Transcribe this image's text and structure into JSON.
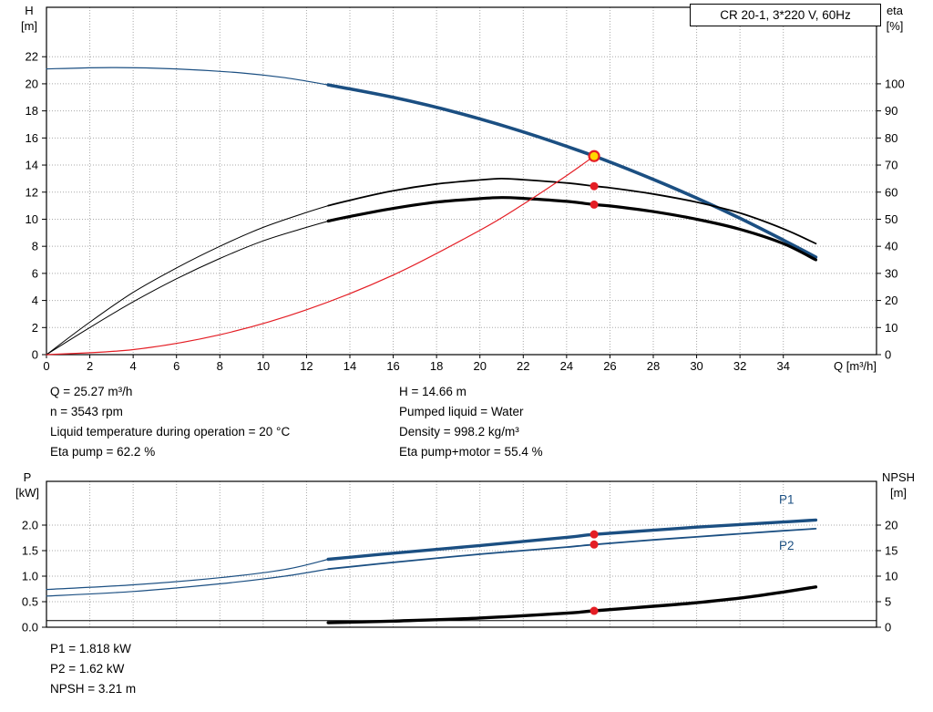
{
  "title_box": "CR 20-1, 3*220 V, 60Hz",
  "colors": {
    "curve_blue": "#1b4f82",
    "curve_black": "#000000",
    "curve_red": "#e41e25",
    "duty_yellow": "#ffd800",
    "grid": "#a8a8a8"
  },
  "info_columns": {
    "left": [
      "Q = 25.27 m³/h",
      "n = 3543 rpm",
      "Liquid temperature during operation = 20 °C",
      "Eta pump = 62.2 %"
    ],
    "right": [
      "H = 14.66 m",
      "Pumped liquid = Water",
      "Density = 998.2 kg/m³",
      "Eta pump+motor = 55.4 %"
    ]
  },
  "results": [
    "P1 = 1.818 kW",
    "P2 = 1.62 kW",
    "NPSH = 3.21 m"
  ],
  "chart_data": [
    {
      "type": "line",
      "name": "hq-eta-chart",
      "title": "CR 20-1, 3*220 V, 60Hz",
      "grid_color": "#a8a8a8",
      "x_axis": {
        "label": "Q [m³/h]",
        "min": 0,
        "max": 38.3,
        "ticks": [
          0,
          2,
          4,
          6,
          8,
          10,
          12,
          14,
          16,
          18,
          20,
          22,
          24,
          26,
          28,
          30,
          32,
          34
        ],
        "labels": [
          "0",
          "2",
          "4",
          "6",
          "8",
          "10",
          "12",
          "14",
          "16",
          "18",
          "20",
          "22",
          "24",
          "26",
          "28",
          "30",
          "32",
          "34"
        ]
      },
      "y_left": {
        "title_lines": [
          "H",
          "[m]"
        ],
        "min": 0,
        "max": 25.65,
        "ticks": [
          0,
          2,
          4,
          6,
          8,
          10,
          12,
          14,
          16,
          18,
          20,
          22
        ],
        "labels": [
          "0",
          "2",
          "4",
          "6",
          "8",
          "10",
          "12",
          "14",
          "16",
          "18",
          "20",
          "22"
        ]
      },
      "y_right": {
        "title_lines": [
          "eta",
          "[%]"
        ],
        "min": 0,
        "max": 128.25,
        "ticks": [
          0,
          10,
          20,
          30,
          40,
          50,
          60,
          70,
          80,
          90,
          100
        ],
        "labels": [
          "0",
          "10",
          "20",
          "30",
          "40",
          "50",
          "60",
          "70",
          "80",
          "90",
          "100"
        ]
      },
      "series": [
        {
          "name": "hq-curve-low",
          "axis": "left",
          "color": "#1b4f82",
          "width": 1.2,
          "points": [
            [
              0,
              21.1
            ],
            [
              3,
              21.2
            ],
            [
              6,
              21.1
            ],
            [
              9,
              20.8
            ],
            [
              11,
              20.45
            ],
            [
              13,
              19.92
            ]
          ]
        },
        {
          "name": "hq-curve",
          "axis": "left",
          "color": "#1b4f82",
          "width": 3.6,
          "points": [
            [
              13,
              19.92
            ],
            [
              16,
              19.0
            ],
            [
              19,
              17.85
            ],
            [
              22,
              16.45
            ],
            [
              25.27,
              14.66
            ],
            [
              28,
              12.94
            ],
            [
              30,
              11.56
            ],
            [
              32,
              10.07
            ],
            [
              34,
              8.46
            ],
            [
              35.5,
              7.2
            ]
          ]
        },
        {
          "name": "eta-pump-curve-low",
          "axis": "right",
          "color": "#000000",
          "width": 1,
          "points": [
            [
              0,
              0
            ],
            [
              2,
              12
            ],
            [
              4,
              23
            ],
            [
              6,
              32
            ],
            [
              8,
              40
            ],
            [
              10,
              47
            ],
            [
              12,
              52.5
            ],
            [
              13,
              55
            ]
          ]
        },
        {
          "name": "eta-pump-curve",
          "axis": "right",
          "color": "#000000",
          "width": 1.8,
          "points": [
            [
              13,
              55
            ],
            [
              14,
              57
            ],
            [
              16,
              60.5
            ],
            [
              18,
              63
            ],
            [
              20,
              64.5
            ],
            [
              21,
              65
            ],
            [
              22,
              64.6
            ],
            [
              24,
              63.4
            ],
            [
              25.27,
              62.2
            ],
            [
              26,
              61.6
            ],
            [
              28,
              59.3
            ],
            [
              30,
              56.3
            ],
            [
              32,
              52.3
            ],
            [
              34,
              46.5
            ],
            [
              35.5,
              41
            ]
          ]
        },
        {
          "name": "eta-pump-motor-curve-low",
          "axis": "right",
          "color": "#000000",
          "width": 1,
          "points": [
            [
              0,
              0
            ],
            [
              2,
              10
            ],
            [
              4,
              19.5
            ],
            [
              6,
              28
            ],
            [
              8,
              35.5
            ],
            [
              10,
              42
            ],
            [
              12,
              47
            ],
            [
              13,
              49.3
            ]
          ]
        },
        {
          "name": "eta-pump-motor-curve",
          "axis": "right",
          "color": "#000000",
          "width": 3.2,
          "points": [
            [
              13,
              49.3
            ],
            [
              14,
              51
            ],
            [
              16,
              54
            ],
            [
              18,
              56.3
            ],
            [
              20,
              57.6
            ],
            [
              21,
              58
            ],
            [
              22,
              57.7
            ],
            [
              24,
              56.6
            ],
            [
              25.27,
              55.4
            ],
            [
              26,
              54.9
            ],
            [
              28,
              52.8
            ],
            [
              30,
              50
            ],
            [
              32,
              46.3
            ],
            [
              34,
              41
            ],
            [
              35.5,
              35
            ]
          ]
        },
        {
          "name": "system-curve",
          "axis": "left",
          "color": "#e41e25",
          "width": 1.2,
          "points": [
            [
              0,
              0
            ],
            [
              4,
              0.37
            ],
            [
              8,
              1.47
            ],
            [
              12,
              3.31
            ],
            [
              16,
              5.88
            ],
            [
              20,
              9.18
            ],
            [
              22,
              11.11
            ],
            [
              24,
              13.22
            ],
            [
              25.27,
              14.66
            ]
          ]
        }
      ],
      "markers": [
        {
          "x": 25.27,
          "y": 14.66,
          "axis": "left",
          "style": "duty",
          "fill": "#ffd800",
          "stroke": "#e41e25"
        },
        {
          "x": 25.27,
          "y": 62.2,
          "axis": "right",
          "style": "dot",
          "fill": "#e41e25"
        },
        {
          "x": 25.27,
          "y": 55.4,
          "axis": "right",
          "style": "dot",
          "fill": "#e41e25"
        }
      ]
    },
    {
      "type": "line",
      "name": "power-npsh-chart",
      "title": "",
      "grid_color": "#a8a8a8",
      "x_axis": {
        "label": "",
        "min": 0,
        "max": 38.3,
        "ticks": [
          2,
          4,
          6,
          8,
          10,
          12,
          14,
          16,
          18,
          20,
          22,
          24,
          26,
          28,
          30,
          32,
          34
        ],
        "labels": []
      },
      "y_left": {
        "title_lines": [
          "P",
          "[kW]"
        ],
        "min": 0,
        "max": 2.857,
        "ticks": [
          0,
          0.5,
          1,
          1.5,
          2
        ],
        "labels": [
          "0.0",
          "0.5",
          "1.0",
          "1.5",
          "2.0"
        ]
      },
      "y_right": {
        "title_lines": [
          "NPSH",
          "[m]"
        ],
        "min": 0,
        "max": 28.57,
        "ticks": [
          0,
          5,
          10,
          15,
          20
        ],
        "labels": [
          "0",
          "5",
          "10",
          "15",
          "20"
        ]
      },
      "series": [
        {
          "name": "p1-curve-low",
          "axis": "left",
          "color": "#1b4f82",
          "width": 1.2,
          "points": [
            [
              0,
              0.74
            ],
            [
              4,
              0.83
            ],
            [
              8,
              0.97
            ],
            [
              11,
              1.13
            ],
            [
              13,
              1.33
            ]
          ]
        },
        {
          "name": "p1-curve",
          "axis": "left",
          "color": "#1b4f82",
          "width": 3.4,
          "points": [
            [
              13,
              1.33
            ],
            [
              16,
              1.45
            ],
            [
              20,
              1.6
            ],
            [
              24,
              1.76
            ],
            [
              25.27,
              1.818
            ],
            [
              28,
              1.9
            ],
            [
              30,
              1.96
            ],
            [
              32,
              2.01
            ],
            [
              34,
              2.06
            ],
            [
              35.5,
              2.1
            ]
          ],
          "label": {
            "text": "P1",
            "x": 33.8,
            "y": 2.42
          }
        },
        {
          "name": "p2-curve-low",
          "axis": "left",
          "color": "#1b4f82",
          "width": 1.2,
          "points": [
            [
              0,
              0.61
            ],
            [
              4,
              0.7
            ],
            [
              8,
              0.85
            ],
            [
              11,
              1.0
            ],
            [
              13,
              1.14
            ]
          ]
        },
        {
          "name": "p2-curve",
          "axis": "left",
          "color": "#1b4f82",
          "width": 1.8,
          "points": [
            [
              13,
              1.14
            ],
            [
              16,
              1.27
            ],
            [
              20,
              1.43
            ],
            [
              24,
              1.57
            ],
            [
              25.27,
              1.62
            ],
            [
              28,
              1.71
            ],
            [
              30,
              1.77
            ],
            [
              32,
              1.83
            ],
            [
              34,
              1.89
            ],
            [
              35.5,
              1.93
            ]
          ],
          "label": {
            "text": "P2",
            "x": 33.8,
            "y": 1.52
          }
        },
        {
          "name": "npsh-baseline",
          "axis": "right",
          "color": "#000000",
          "width": 1,
          "points": [
            [
              0,
              1.3
            ],
            [
              19,
              1.3
            ],
            [
              38.3,
              1.3
            ]
          ]
        },
        {
          "name": "npsh-curve",
          "axis": "right",
          "color": "#000000",
          "width": 3.4,
          "points": [
            [
              13,
              0.9
            ],
            [
              16,
              1.2
            ],
            [
              20,
              1.8
            ],
            [
              24,
              2.75
            ],
            [
              25.27,
              3.21
            ],
            [
              28,
              4.1
            ],
            [
              30,
              4.8
            ],
            [
              32,
              5.7
            ],
            [
              34,
              6.9
            ],
            [
              35.5,
              7.9
            ]
          ]
        }
      ],
      "markers": [
        {
          "x": 25.27,
          "y": 1.818,
          "axis": "left",
          "style": "dot",
          "fill": "#e41e25"
        },
        {
          "x": 25.27,
          "y": 1.62,
          "axis": "left",
          "style": "dot",
          "fill": "#e41e25"
        },
        {
          "x": 25.27,
          "y": 3.21,
          "axis": "right",
          "style": "dot",
          "fill": "#e41e25"
        }
      ]
    }
  ]
}
